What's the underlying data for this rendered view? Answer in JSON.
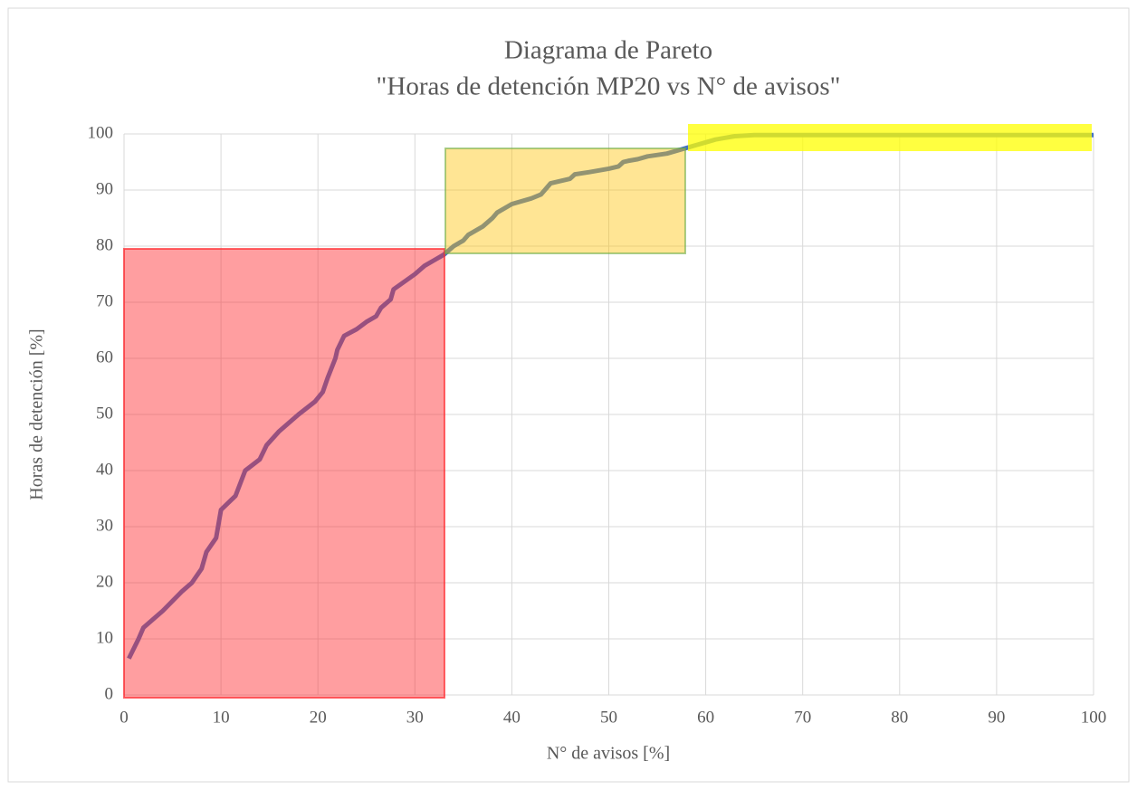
{
  "chart_data": {
    "type": "line",
    "title": "Diagrama de Pareto",
    "subtitle": "\"Horas de detención MP20 vs N° de avisos\"",
    "x_label": "N° de avisos [%]",
    "y_label": "Horas de detención [%]",
    "x": [
      0.5,
      1.5,
      2,
      4,
      6,
      7,
      8,
      8.5,
      9.5,
      10,
      11.5,
      12.5,
      14,
      14.7,
      16,
      18,
      19.7,
      20.5,
      21,
      21.8,
      22,
      22.7,
      24,
      25,
      26,
      26.5,
      27.5,
      27.8,
      30,
      31,
      32,
      33,
      34,
      35,
      35.5,
      37,
      38,
      38.5,
      40,
      42,
      43,
      44,
      45,
      46,
      46.5,
      48,
      50,
      51,
      51.5,
      52,
      53,
      54,
      56,
      57,
      58,
      59,
      60,
      61,
      62,
      63,
      65,
      100
    ],
    "series": [
      {
        "name": "Horas de detención",
        "color": "#4472c4",
        "values": [
          6.5,
          10,
          12,
          15,
          18.5,
          20,
          22.5,
          25.5,
          28,
          33,
          35.5,
          40,
          42,
          44.5,
          47,
          50,
          52.3,
          54,
          56.5,
          60,
          61.5,
          64,
          65.2,
          66.5,
          67.5,
          69,
          70.5,
          72.3,
          75,
          76.5,
          77.5,
          78.5,
          80,
          81,
          82,
          83.5,
          85,
          86,
          87.5,
          88.5,
          89.2,
          91.2,
          91.6,
          92,
          92.8,
          93.2,
          93.8,
          94.2,
          95,
          95.2,
          95.5,
          96,
          96.5,
          97,
          97.5,
          98,
          98.5,
          99,
          99.3,
          99.6,
          99.8,
          99.8
        ]
      }
    ],
    "xlim": [
      0,
      100
    ],
    "xticks": [
      0,
      10,
      20,
      30,
      40,
      50,
      60,
      70,
      80,
      90,
      100
    ],
    "ylim": [
      0,
      100
    ],
    "yticks": [
      0,
      10,
      20,
      30,
      40,
      50,
      60,
      70,
      80,
      90,
      100
    ],
    "grid": true
  }
}
